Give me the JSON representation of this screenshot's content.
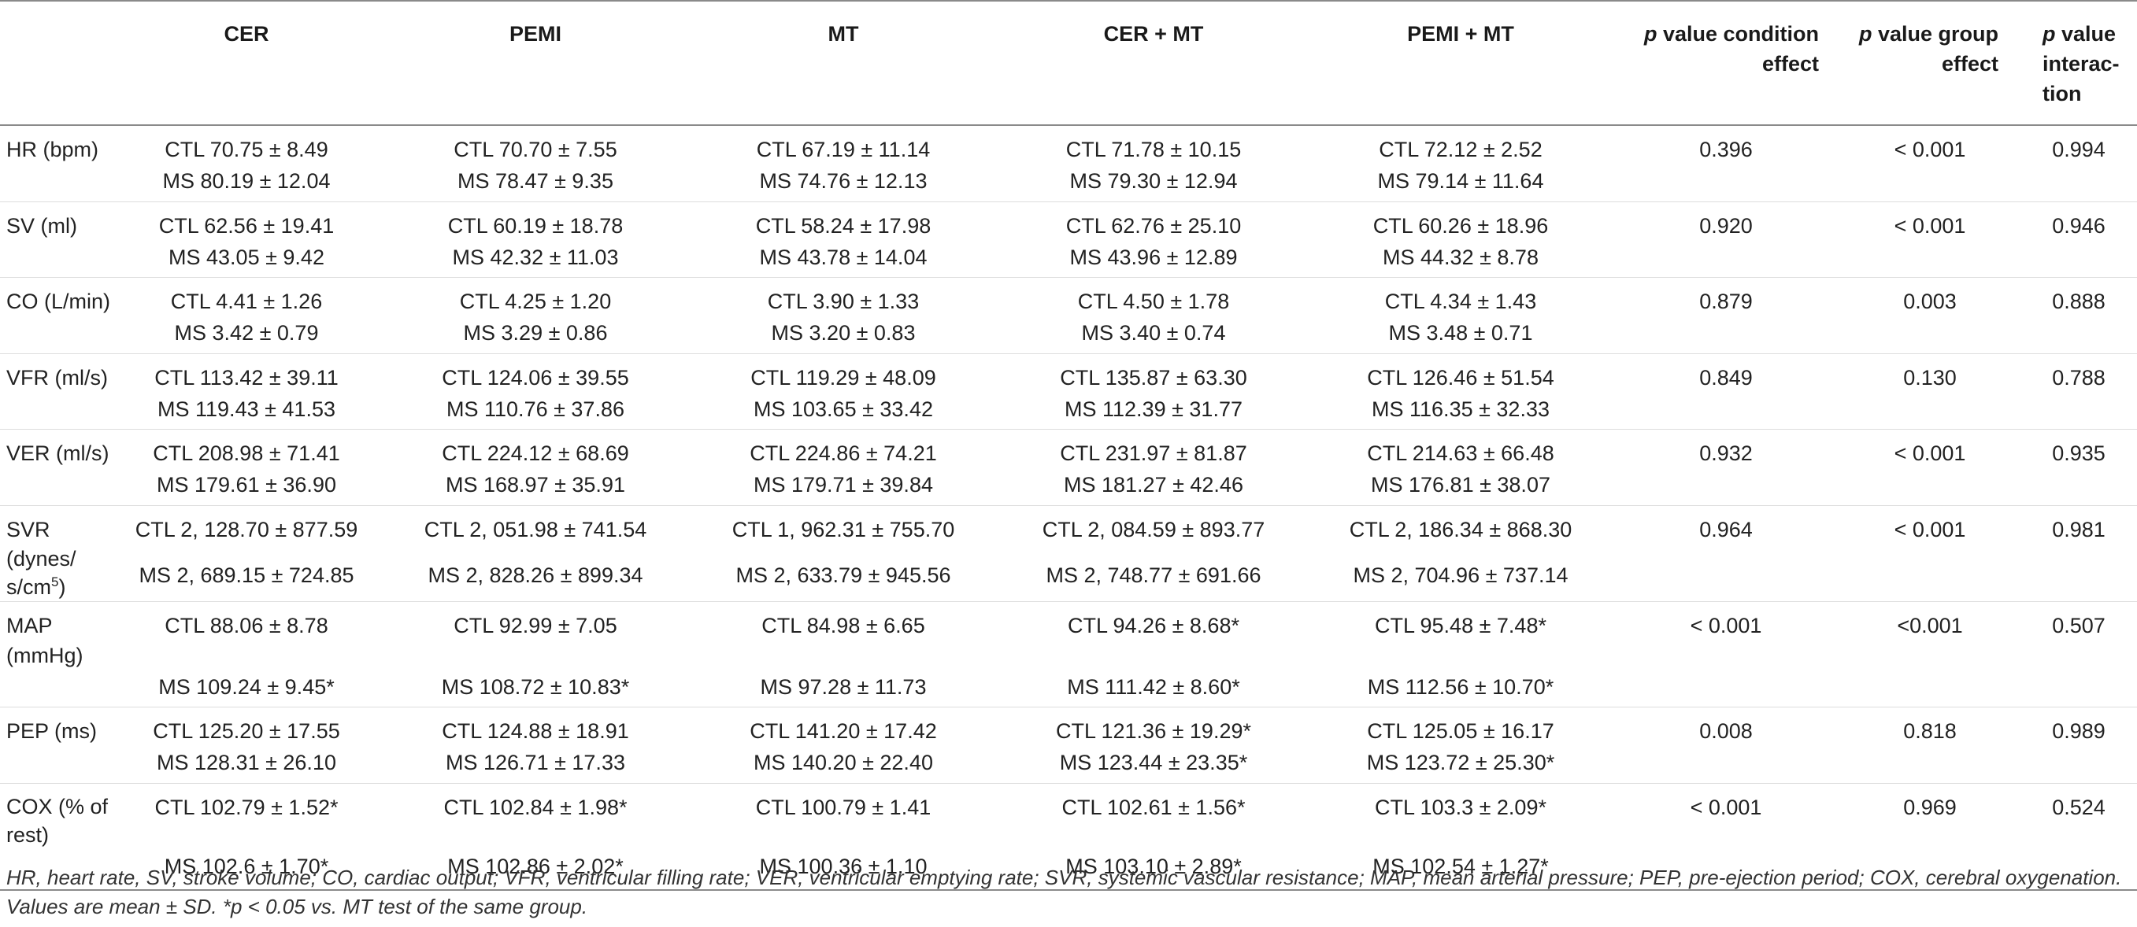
{
  "header": {
    "cer": "CER",
    "pemi": "PEMI",
    "mt": "MT",
    "cer_mt": "CER + MT",
    "pemi_mt": "PEMI + MT",
    "p_cond_italic": "p",
    "p_cond_rest": " value condition effect",
    "p_group_italic": "p",
    "p_group_rest": " value group effect",
    "p_inter_italic": "p",
    "p_inter_rest": " value interac-tion"
  },
  "rows": [
    {
      "label": "HR (bpm)",
      "ctl": [
        "CTL 70.75 ± 8.49",
        "CTL 70.70 ± 7.55",
        "CTL 67.19 ± 11.14",
        "CTL 71.78 ± 10.15",
        "CTL 72.12 ± 2.52"
      ],
      "ms": [
        "MS 80.19 ± 12.04",
        "MS 78.47 ± 9.35",
        "MS 74.76 ± 12.13",
        "MS 79.30 ± 12.94",
        "MS 79.14 ± 11.64"
      ],
      "p_condition": "0.396",
      "p_group": "< 0.001",
      "p_interaction": "0.994"
    },
    {
      "label": "SV (ml)",
      "ctl": [
        "CTL 62.56 ± 19.41",
        "CTL 60.19 ± 18.78",
        "CTL 58.24 ± 17.98",
        "CTL 62.76 ± 25.10",
        "CTL 60.26 ± 18.96"
      ],
      "ms": [
        "MS 43.05 ± 9.42",
        "MS 42.32 ± 11.03",
        "MS 43.78 ± 14.04",
        "MS 43.96 ± 12.89",
        "MS 44.32 ± 8.78"
      ],
      "p_condition": "0.920",
      "p_group": "< 0.001",
      "p_interaction": "0.946"
    },
    {
      "label": "CO (L/min)",
      "ctl": [
        "CTL 4.41 ± 1.26",
        "CTL 4.25 ± 1.20",
        "CTL 3.90 ± 1.33",
        "CTL 4.50 ± 1.78",
        "CTL 4.34 ± 1.43"
      ],
      "ms": [
        "MS 3.42 ± 0.79",
        "MS 3.29 ± 0.86",
        "MS 3.20 ± 0.83",
        "MS 3.40 ± 0.74",
        "MS 3.48 ± 0.71"
      ],
      "p_condition": "0.879",
      "p_group": "0.003",
      "p_interaction": "0.888"
    },
    {
      "label": "VFR (ml/s)",
      "ctl": [
        "CTL 113.42 ± 39.11",
        "CTL 124.06 ± 39.55",
        "CTL 119.29 ± 48.09",
        "CTL 135.87 ± 63.30",
        "CTL 126.46 ± 51.54"
      ],
      "ms": [
        "MS 119.43 ± 41.53",
        "MS 110.76 ± 37.86",
        "MS 103.65 ± 33.42",
        "MS 112.39 ± 31.77",
        "MS 116.35 ± 32.33"
      ],
      "p_condition": "0.849",
      "p_group": "0.130",
      "p_interaction": "0.788"
    },
    {
      "label": "VER (ml/s)",
      "ctl": [
        "CTL 208.98 ± 71.41",
        "CTL 224.12 ± 68.69",
        "CTL 224.86 ± 74.21",
        "CTL 231.97 ± 81.87",
        "CTL 214.63 ± 66.48"
      ],
      "ms": [
        "MS 179.61 ± 36.90",
        "MS 168.97 ± 35.91",
        "MS 179.71 ± 39.84",
        "MS 181.27 ± 42.46",
        "MS 176.81 ± 38.07"
      ],
      "p_condition": "0.932",
      "p_group": "< 0.001",
      "p_interaction": "0.935"
    },
    {
      "label_1": "SVR",
      "label_2": "(dynes/",
      "label_3": "s/cm",
      "label_sup": "5",
      "label_4": ")",
      "ctl": [
        "CTL 2, 128.70 ± 877.59",
        "CTL 2, 051.98 ± 741.54",
        "CTL 1, 962.31 ± 755.70",
        "CTL 2, 084.59 ± 893.77",
        "CTL 2, 186.34 ± 868.30"
      ],
      "ms": [
        "MS 2, 689.15 ± 724.85",
        "MS 2, 828.26 ± 899.34",
        "MS 2, 633.79 ± 945.56",
        "MS 2, 748.77 ± 691.66",
        "MS 2, 704.96 ± 737.14"
      ],
      "p_condition": "0.964",
      "p_group": "< 0.001",
      "p_interaction": "0.981"
    },
    {
      "label": "MAP (mmHg)",
      "ctl": [
        "CTL 88.06 ± 8.78",
        "CTL 92.99 ± 7.05",
        "CTL 84.98 ± 6.65",
        "CTL 94.26 ± 8.68*",
        "CTL 95.48 ± 7.48*"
      ],
      "ms": [
        "MS 109.24 ± 9.45*",
        "MS 108.72 ± 10.83*",
        "MS 97.28 ± 11.73",
        "MS 111.42 ± 8.60*",
        "MS 112.56 ± 10.70*"
      ],
      "p_condition": "< 0.001",
      "p_group": "<0.001",
      "p_interaction": "0.507"
    },
    {
      "label": "PEP (ms)",
      "ctl": [
        "CTL 125.20 ± 17.55",
        "CTL 124.88 ± 18.91",
        "CTL 141.20 ± 17.42",
        "CTL 121.36 ± 19.29*",
        "CTL 125.05 ± 16.17"
      ],
      "ms": [
        "MS 128.31 ± 26.10",
        "MS 126.71 ± 17.33",
        "MS 140.20 ± 22.40",
        "MS 123.44 ± 23.35*",
        "MS 123.72 ± 25.30*"
      ],
      "p_condition": "0.008",
      "p_group": "0.818",
      "p_interaction": "0.989"
    },
    {
      "label_1": "COX (% of",
      "label_2": "rest)",
      "ctl": [
        "CTL 102.79 ± 1.52*",
        "CTL 102.84 ± 1.98*",
        "CTL 100.79 ± 1.41",
        "CTL 102.61 ± 1.56*",
        "CTL 103.3 ± 2.09*"
      ],
      "ms": [
        "MS 102.6 ± 1.70*",
        "MS 102.86 ± 2.02*",
        "MS 100.36 ± 1.10",
        "MS 103.10 ± 2.89*",
        "MS 102.54 ± 1.27*"
      ],
      "p_condition": "< 0.001",
      "p_group": "0.969",
      "p_interaction": "0.524"
    }
  ],
  "footnote": "HR, heart rate, SV, stroke volume; CO, cardiac output; VFR, ventricular filling rate; VER, ventricular emptying rate; SVR, systemic vascular resistance; MAP, mean arterial pressure; PEP, pre-ejection period; COX, cerebral oxygenation. Values are mean ± SD. *p < 0.05 vs. MT test of the same group."
}
